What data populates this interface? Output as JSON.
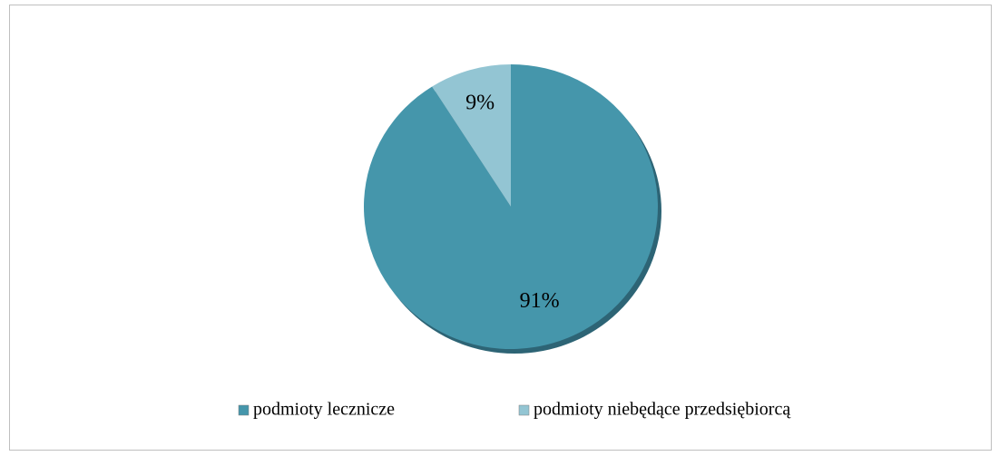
{
  "chart_data": {
    "type": "pie",
    "categories": [
      "podmioty lecznicze",
      "podmioty niebędące przedsiębiorcą"
    ],
    "values": [
      91,
      9
    ],
    "value_labels": [
      "91%",
      "9%"
    ],
    "colors": [
      "#4596ab",
      "#93c5d3"
    ],
    "legend": "bottom"
  }
}
